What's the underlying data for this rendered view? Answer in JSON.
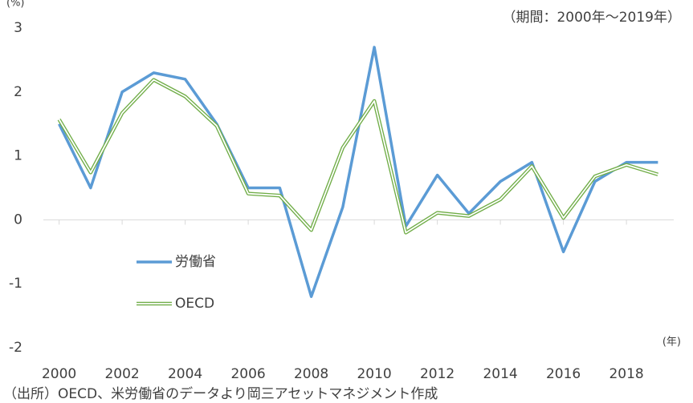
{
  "chart_data": {
    "type": "line",
    "y_unit": "(%)",
    "subtitle": "（期間：2000年～2019年）",
    "x_unit": "(年)",
    "source": "（出所）OECD、米労働省のデータより岡三アセットマネジメント作成",
    "x": [
      2000,
      2001,
      2002,
      2003,
      2004,
      2005,
      2006,
      2007,
      2008,
      2009,
      2010,
      2011,
      2012,
      2013,
      2014,
      2015,
      2016,
      2017,
      2018,
      2019
    ],
    "series": [
      {
        "name": "労働省",
        "color": "#5b9bd5",
        "style": "solid",
        "values": [
          1.5,
          0.5,
          2.0,
          2.3,
          2.2,
          1.5,
          0.5,
          0.5,
          -1.2,
          0.2,
          2.7,
          -0.1,
          0.7,
          0.1,
          0.6,
          0.9,
          -0.5,
          0.6,
          0.9,
          0.9
        ]
      },
      {
        "name": "OECD",
        "color": "#70ad47",
        "style": "double",
        "values": [
          1.57,
          0.74,
          1.67,
          2.19,
          1.93,
          1.47,
          0.41,
          0.38,
          -0.16,
          1.13,
          1.86,
          -0.2,
          0.11,
          0.06,
          0.32,
          0.84,
          0.03,
          0.68,
          0.86,
          0.71
        ]
      }
    ],
    "xlim": [
      1999.5,
      2019.5
    ],
    "xticks": [
      2000,
      2002,
      2004,
      2006,
      2008,
      2010,
      2012,
      2014,
      2016,
      2018
    ],
    "ylim": [
      -2,
      3
    ],
    "yticks": [
      -2,
      -1,
      0,
      1,
      2,
      3
    ],
    "grid": false,
    "legend": "left"
  }
}
